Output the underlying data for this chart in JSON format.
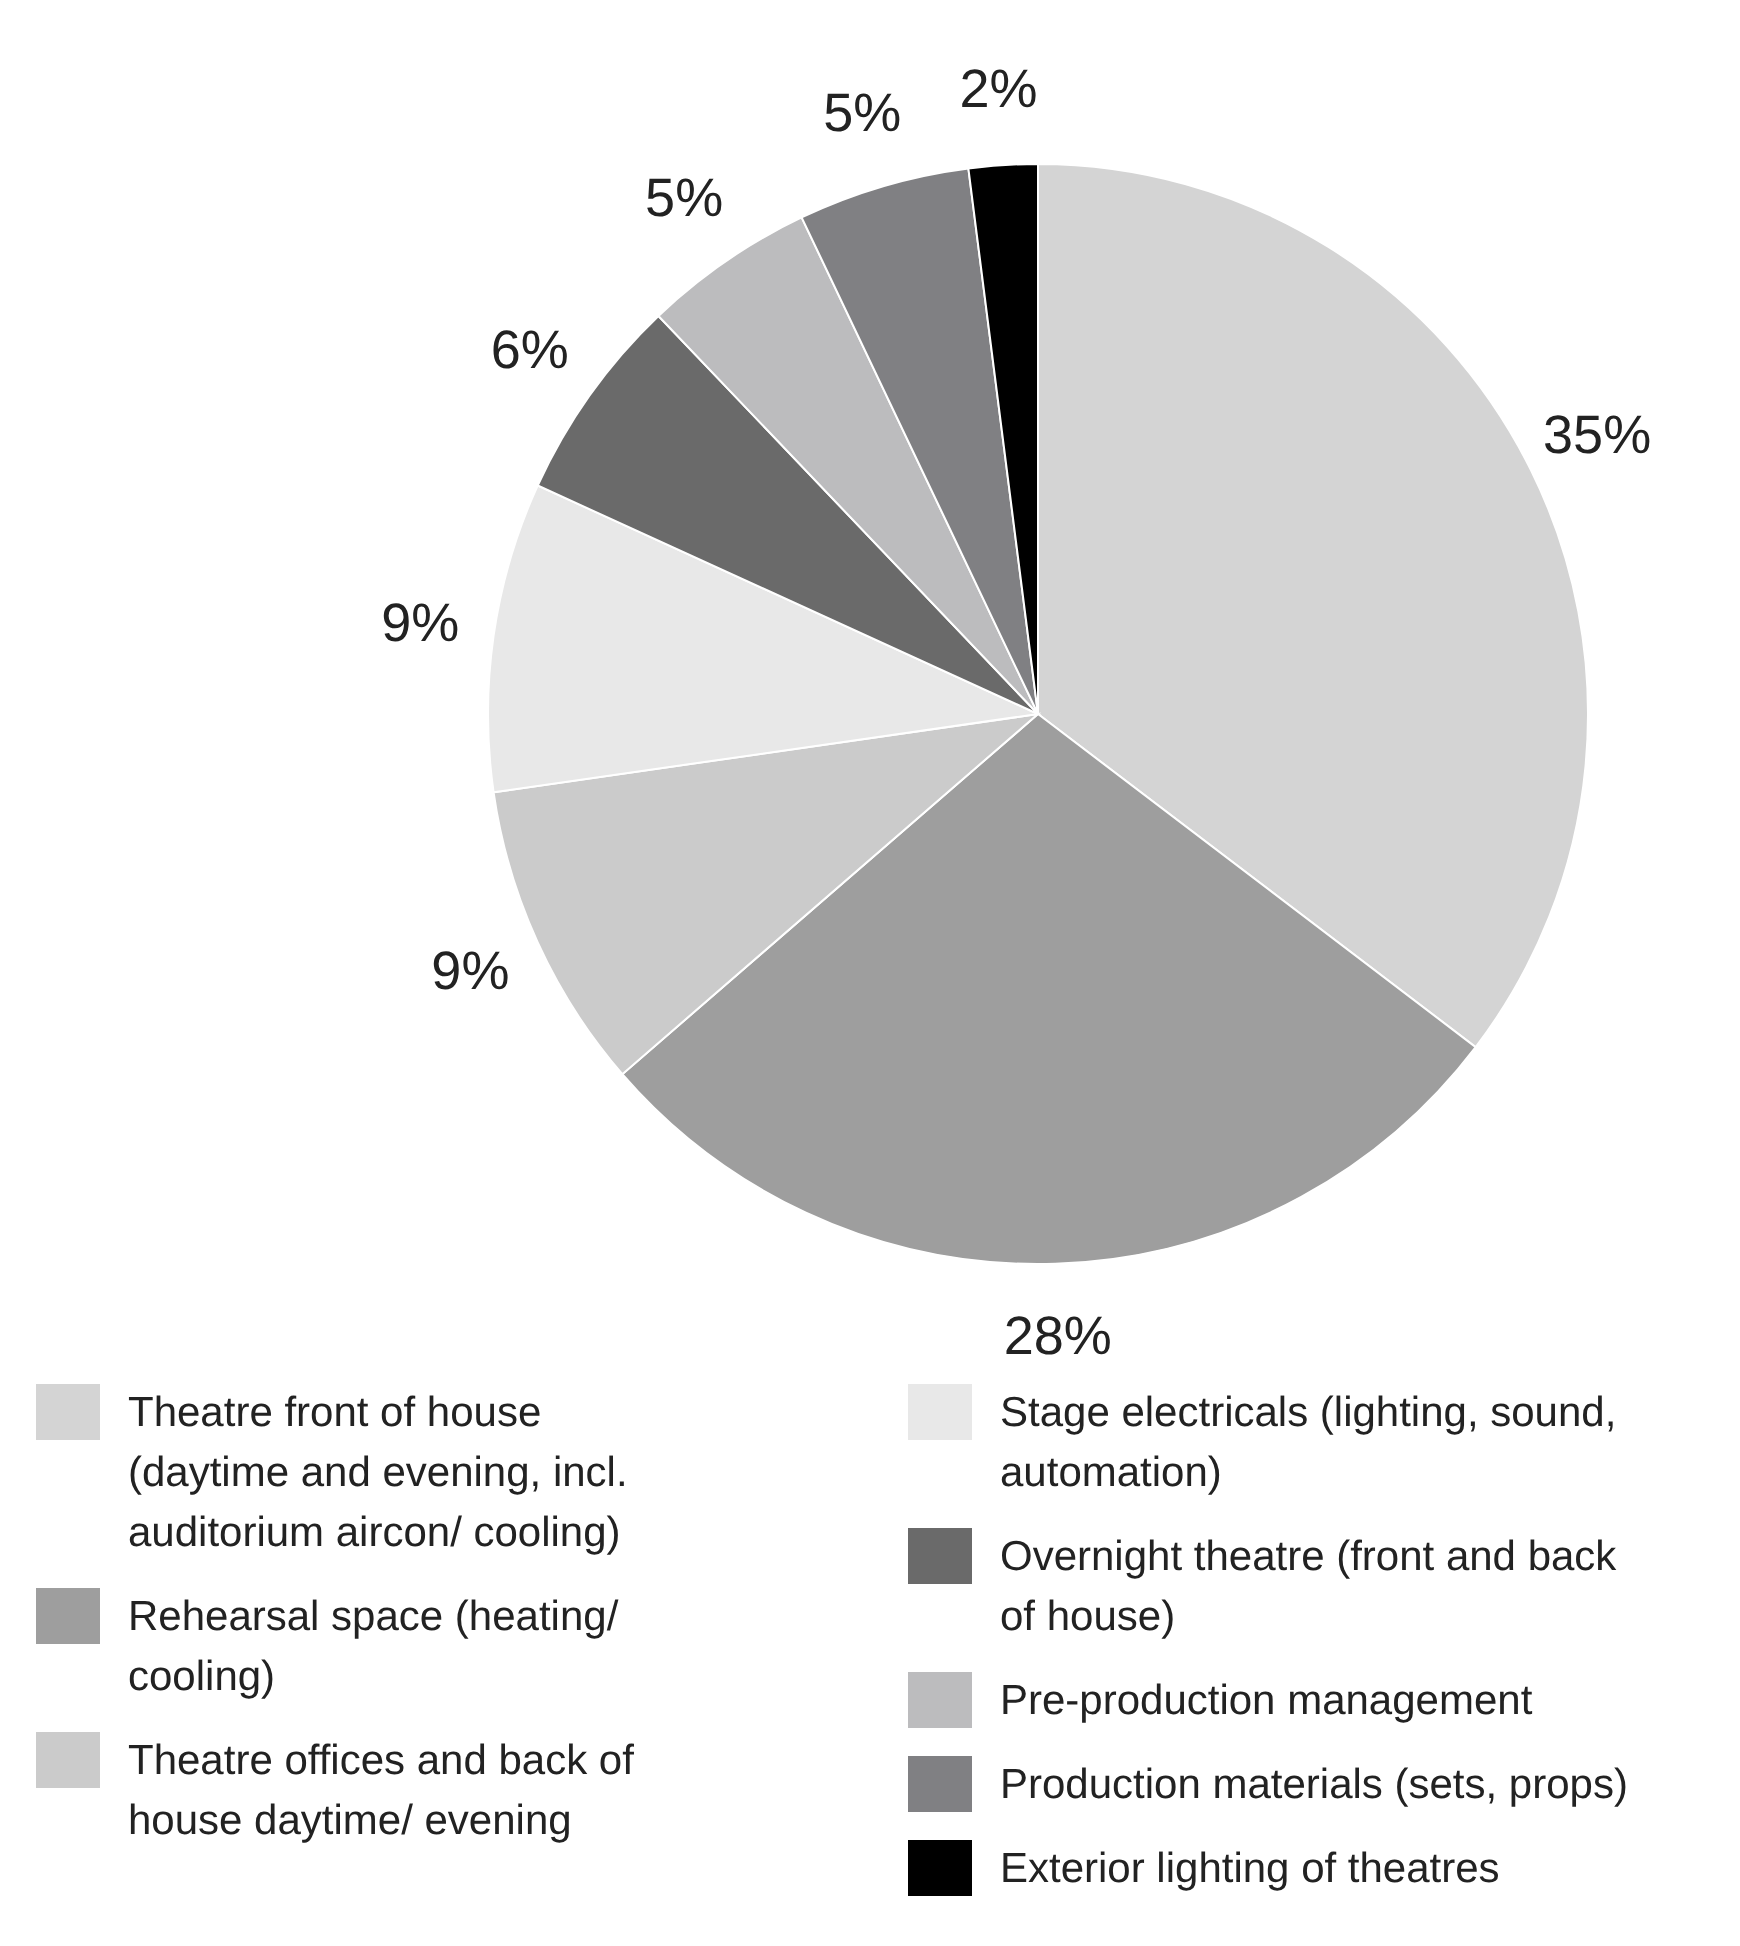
{
  "chart_data": {
    "type": "pie",
    "categories": [
      "Theatre front of house (daytime and evening, incl. auditorium aircon/ cooling)",
      "Rehearsal space (heating/ cooling)",
      "Theatre offices and back of house daytime/ evening",
      "Stage electricals (lighting, sound, automation)",
      "Overnight theatre (front and back of house)",
      "Pre-production management",
      "Production materials (sets, props)",
      "Exterior lighting of theatres"
    ],
    "values": [
      35,
      28,
      9,
      9,
      6,
      5,
      5,
      2
    ],
    "value_labels": [
      "35%",
      "28%",
      "9%",
      "9%",
      "6%",
      "5%",
      "5%",
      "2%"
    ],
    "colors": [
      "#d4d4d4",
      "#9e9e9e",
      "#cbcbcb",
      "#e8e8e8",
      "#6a6a6a",
      "#bcbcbe",
      "#808083",
      "#000000"
    ],
    "legend": "bottom"
  }
}
